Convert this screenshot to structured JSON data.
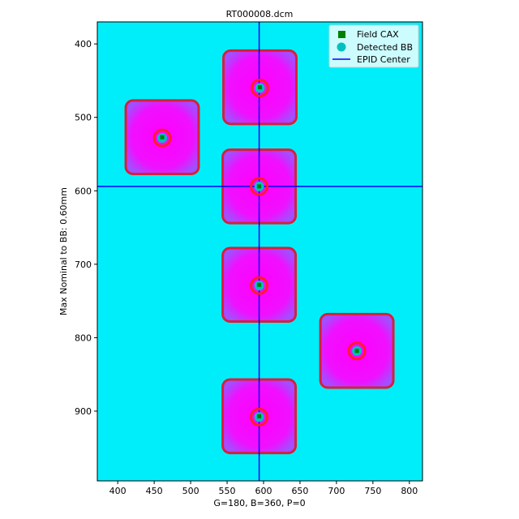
{
  "chart_data": {
    "type": "heatmap",
    "title": "RT000008.dcm",
    "xlabel": "G=180, B=360, P=0",
    "ylabel": "Max Nominal to BB: 0.60mm",
    "xlim": [
      372,
      818
    ],
    "ylim": [
      995,
      370
    ],
    "x_ticks": [
      400,
      450,
      500,
      550,
      600,
      650,
      700,
      750,
      800
    ],
    "y_ticks": [
      400,
      500,
      600,
      700,
      800,
      900
    ],
    "grid": false,
    "legend_position": "top-right",
    "background_color": "#00eefa",
    "field_color": "#ff00ff",
    "edge_color": "#d6203a",
    "legend": [
      {
        "label": "Field CAX",
        "marker": "square",
        "color": "#008000"
      },
      {
        "label": "Detected BB",
        "marker": "circle",
        "color": "#00c0c0"
      },
      {
        "label": "EPID Center",
        "marker": "line",
        "color": "#0000ff"
      }
    ],
    "epid_center": {
      "x": 594,
      "y": 594
    },
    "fields": [
      {
        "cx": 595,
        "cy": 459,
        "bb_x": 595,
        "bb_y": 460,
        "half": 50
      },
      {
        "cx": 461,
        "cy": 527,
        "bb_x": 461,
        "bb_y": 528,
        "half": 50
      },
      {
        "cx": 594,
        "cy": 594,
        "bb_x": 594,
        "bb_y": 594,
        "half": 50
      },
      {
        "cx": 594,
        "cy": 728,
        "bb_x": 594,
        "bb_y": 729,
        "half": 50
      },
      {
        "cx": 728,
        "cy": 818,
        "bb_x": 728,
        "bb_y": 818,
        "half": 50
      },
      {
        "cx": 594,
        "cy": 907,
        "bb_x": 594,
        "bb_y": 908,
        "half": 50
      }
    ]
  }
}
